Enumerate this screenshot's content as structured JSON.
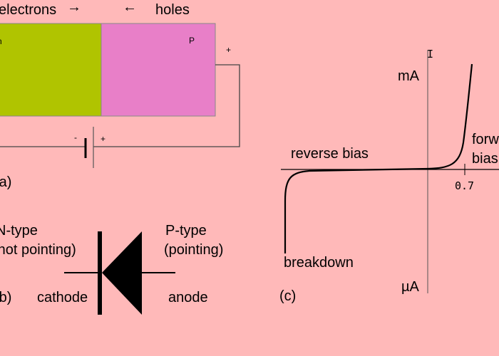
{
  "colors": {
    "background": "#ffb9b9",
    "n_region": "#b0c400",
    "p_region": "#e87fc8",
    "stroke": "#000000"
  },
  "junction": {
    "electrons_label": "electrons",
    "electrons_arrow": "→",
    "holes_arrow": "←",
    "holes_label": "holes",
    "n_letter": "n",
    "p_letter": "P",
    "plus_terminal": "+",
    "battery_minus": "-",
    "battery_plus": "+",
    "caption": "(a)"
  },
  "symbol": {
    "n_type": "N-type",
    "n_note": "(not pointing)",
    "p_type": "P-type",
    "p_note": "(pointing)",
    "cathode": "cathode",
    "anode": "anode",
    "caption": "(b)"
  },
  "iv_curve": {
    "axis_current": "I",
    "upper_unit": "mA",
    "lower_unit": "µA",
    "reverse_bias": "reverse bias",
    "forward_line1": "forward",
    "forward_line2": "bias",
    "threshold_tick": "0.7",
    "breakdown": "breakdown",
    "caption": "(c)"
  }
}
